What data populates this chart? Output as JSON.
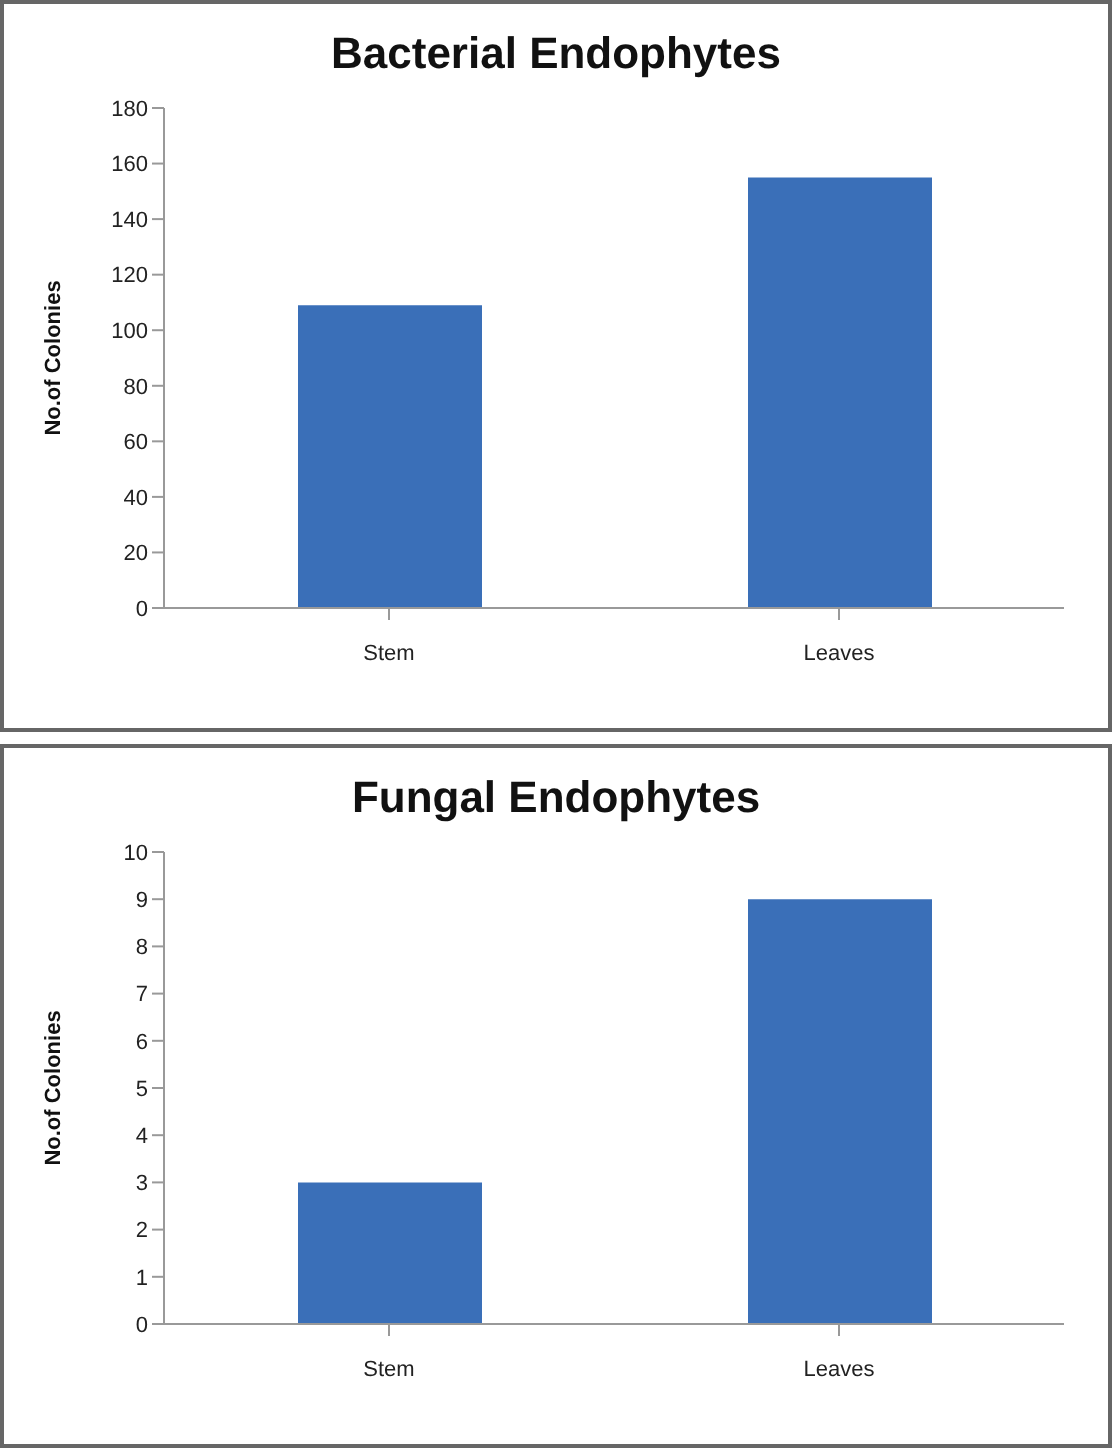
{
  "chart_data": [
    {
      "type": "bar",
      "title": "Bacterial Endophytes",
      "ylabel": "No.of Colonies",
      "categories": [
        "Stem",
        "Leaves"
      ],
      "values": [
        109,
        155
      ],
      "color": "#3a6fb8",
      "ylim": [
        0,
        180
      ],
      "yticks": [
        0,
        20,
        40,
        60,
        80,
        100,
        120,
        140,
        160,
        180
      ],
      "grid": false,
      "legend": false
    },
    {
      "type": "bar",
      "title": "Fungal Endophytes",
      "ylabel": "No.of Colonies",
      "categories": [
        "Stem",
        "Leaves"
      ],
      "values": [
        3,
        9
      ],
      "color": "#3a6fb8",
      "ylim": [
        0,
        10
      ],
      "yticks": [
        0,
        1,
        2,
        3,
        4,
        5,
        6,
        7,
        8,
        9,
        10
      ],
      "grid": false,
      "legend": false
    }
  ]
}
